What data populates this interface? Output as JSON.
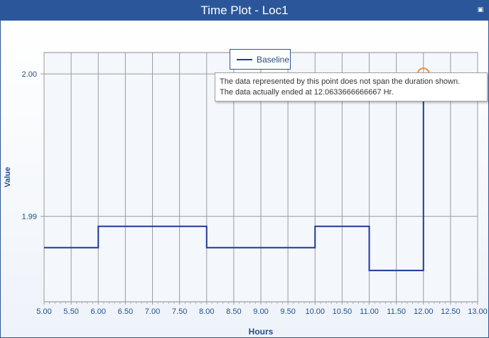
{
  "window": {
    "title": "Time Plot - Loc1",
    "restore_icon": "restore-icon"
  },
  "colors": {
    "titlebar": "#2b579a",
    "series": "#1f3a93",
    "highlight": "#e69138",
    "axis_text": "#1f4e8c",
    "grid": "#9a9a9a"
  },
  "tooltip": {
    "line1": "The data represented by this point does not span the duration shown.",
    "line2": "The data actually ended at 12.0633666666667 Hr."
  },
  "chart_data": {
    "type": "line",
    "step": true,
    "title": "",
    "xlabel": "Hours",
    "ylabel": "Value",
    "xlim": [
      5.0,
      13.0
    ],
    "ylim": [
      1.984,
      2.0015
    ],
    "grid": true,
    "legend_position": "top-center",
    "x_ticks": [
      "5.00",
      "5.50",
      "6.00",
      "6.50",
      "7.00",
      "7.50",
      "8.00",
      "8.50",
      "9.00",
      "9.50",
      "10.00",
      "10.50",
      "11.00",
      "11.50",
      "12.00",
      "12.50",
      "13.00"
    ],
    "y_ticks": [
      "1.99",
      "2.00"
    ],
    "series": [
      {
        "name": "Baseline",
        "x": [
          5.0,
          6.0,
          6.0,
          8.0,
          8.0,
          10.0,
          10.0,
          11.0,
          11.0,
          12.0,
          12.0,
          13.0
        ],
        "y": [
          1.9878,
          1.9878,
          1.9893,
          1.9893,
          1.9878,
          1.9878,
          1.9893,
          1.9893,
          1.9862,
          1.9862,
          2.0,
          2.0
        ]
      }
    ],
    "highlighted_point": {
      "x": 12.0,
      "y": 2.0
    }
  }
}
